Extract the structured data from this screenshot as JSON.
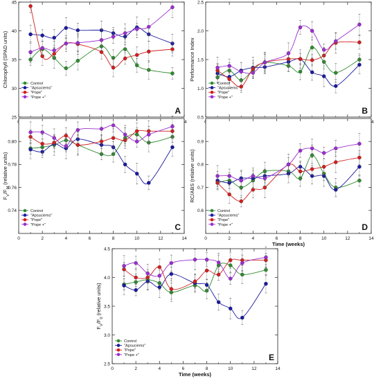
{
  "figure": {
    "series_names": [
      "Control",
      "\"Apsuciems\"",
      "\"Pope\"",
      "\"Pope +\""
    ],
    "series_colors": [
      "#2e8b2e",
      "#1a1aa0",
      "#d21e1e",
      "#9a2fd0"
    ],
    "x_values": [
      1,
      2,
      3,
      4,
      5,
      7,
      8,
      9,
      10,
      11,
      13
    ]
  },
  "chart_data": [
    {
      "type": "line",
      "panel_label": "A",
      "xlabel": "",
      "ylabel": "Chlorophyll (SPAD units)",
      "xlim": [
        0,
        14
      ],
      "ylim": [
        25,
        45
      ],
      "xticks": [
        0,
        2,
        4,
        6,
        8,
        10,
        12,
        14
      ],
      "yticks": [
        25,
        30,
        35,
        40,
        45
      ],
      "x": [
        1,
        2,
        3,
        4,
        5,
        7,
        8,
        9,
        10,
        11,
        13
      ],
      "series": [
        {
          "name": "Control",
          "values": [
            35.0,
            36.8,
            35.3,
            33.5,
            34.8,
            37.3,
            35.3,
            36.8,
            34.0,
            33.2,
            32.6
          ]
        },
        {
          "name": "\"Apsuciems\"",
          "values": [
            39.4,
            39.2,
            38.8,
            40.5,
            40.1,
            40.1,
            39.6,
            39.0,
            40.6,
            39.4,
            37.8
          ]
        },
        {
          "name": "\"Pope\"",
          "values": [
            44.3,
            35.6,
            36.0,
            37.8,
            37.7,
            36.3,
            33.6,
            35.2,
            35.8,
            36.4,
            36.8
          ]
        },
        {
          "name": "\"Pope +\"",
          "values": [
            36.3,
            37.0,
            36.6,
            37.8,
            37.9,
            38.4,
            39.0,
            39.6,
            40.3,
            40.7,
            44.1
          ]
        }
      ]
    },
    {
      "type": "line",
      "panel_label": "B",
      "xlabel": "",
      "ylabel": "Performance Index",
      "xlim": [
        0,
        14
      ],
      "ylim": [
        0.5,
        2.5
      ],
      "xticks": [
        0,
        2,
        4,
        6,
        8,
        10,
        12,
        14
      ],
      "yticks": [
        0.5,
        1.0,
        1.5,
        2.0,
        2.5
      ],
      "x": [
        1,
        2,
        3,
        4,
        5,
        7,
        8,
        9,
        10,
        11,
        13
      ],
      "series": [
        {
          "name": "Control",
          "values": [
            1.19,
            1.31,
            1.14,
            1.32,
            1.45,
            1.39,
            1.29,
            1.71,
            1.46,
            1.27,
            1.5
          ]
        },
        {
          "name": "\"Apsuciems\"",
          "values": [
            1.26,
            1.2,
            1.31,
            1.36,
            1.37,
            1.46,
            1.51,
            1.28,
            1.21,
            1.04,
            1.41
          ]
        },
        {
          "name": "\"Pope\"",
          "values": [
            1.31,
            1.16,
            1.03,
            1.34,
            1.45,
            1.51,
            1.51,
            1.49,
            1.57,
            1.79,
            1.8
          ]
        },
        {
          "name": "\"Pope +\"",
          "values": [
            1.36,
            1.39,
            1.29,
            1.27,
            1.45,
            1.61,
            2.06,
            2.0,
            1.67,
            1.82,
            2.11
          ]
        }
      ]
    },
    {
      "type": "line",
      "panel_label": "C",
      "xlabel": "",
      "ylabel": "F_V/F_M (relative units)",
      "xlim": [
        0,
        14
      ],
      "ylim": [
        0.72,
        0.82
      ],
      "xticks": [
        0,
        2,
        4,
        6,
        8,
        10,
        12,
        14
      ],
      "yticks": [
        0.74,
        0.76,
        0.78,
        0.8
      ],
      "x": [
        1,
        2,
        3,
        4,
        5,
        7,
        8,
        9,
        10,
        11,
        13
      ],
      "series": [
        {
          "name": "Control",
          "values": [
            0.794,
            0.795,
            0.797,
            0.801,
            0.797,
            0.789,
            0.789,
            0.803,
            0.806,
            0.799,
            0.804
          ]
        },
        {
          "name": "\"Apsuciems\"",
          "values": [
            0.793,
            0.791,
            0.798,
            0.794,
            0.802,
            0.797,
            0.795,
            0.78,
            0.772,
            0.764,
            0.795
          ]
        },
        {
          "name": "\"Pope\"",
          "values": [
            0.804,
            0.798,
            0.799,
            0.805,
            0.797,
            0.8,
            0.803,
            0.801,
            0.809,
            0.809,
            0.809
          ]
        },
        {
          "name": "\"Pope +\"",
          "values": [
            0.808,
            0.808,
            0.803,
            0.796,
            0.81,
            0.811,
            0.814,
            0.806,
            0.8,
            0.806,
            0.813
          ]
        }
      ]
    },
    {
      "type": "line",
      "panel_label": "D",
      "xlabel": "Time (weeks)",
      "ylabel": "RC/ABS (relative units)",
      "xlim": [
        0,
        14
      ],
      "ylim": [
        0.5,
        1.0
      ],
      "xticks": [
        0,
        2,
        4,
        6,
        8,
        10,
        12,
        14
      ],
      "yticks": [
        0.6,
        0.7,
        0.8,
        0.9
      ],
      "x": [
        1,
        2,
        3,
        4,
        5,
        7,
        8,
        9,
        10,
        11,
        13
      ],
      "series": [
        {
          "name": "Control",
          "values": [
            0.72,
            0.73,
            0.7,
            0.73,
            0.77,
            0.77,
            0.74,
            0.84,
            0.76,
            0.7,
            0.73
          ]
        },
        {
          "name": "\"Apsuciems\"",
          "values": [
            0.73,
            0.72,
            0.74,
            0.74,
            0.75,
            0.76,
            0.79,
            0.75,
            0.75,
            0.69,
            0.79
          ]
        },
        {
          "name": "\"Pope\"",
          "values": [
            0.72,
            0.67,
            0.64,
            0.69,
            0.7,
            0.8,
            0.77,
            0.78,
            0.79,
            0.81,
            0.83
          ]
        },
        {
          "name": "\"Pope +\"",
          "values": [
            0.75,
            0.75,
            0.73,
            0.75,
            0.74,
            0.8,
            0.86,
            0.87,
            0.85,
            0.87,
            0.89
          ]
        }
      ]
    },
    {
      "type": "line",
      "panel_label": "E",
      "xlabel": "Time (weeks)",
      "ylabel": "F_V/F_0 (relative units)",
      "xlim": [
        0,
        14
      ],
      "ylim": [
        2.5,
        4.5
      ],
      "xticks": [
        0,
        2,
        4,
        6,
        8,
        10,
        12,
        14
      ],
      "yticks": [
        2.5,
        3.0,
        3.5,
        4.0,
        4.5
      ],
      "x": [
        1,
        2,
        3,
        4,
        5,
        7,
        8,
        9,
        10,
        11,
        13
      ],
      "series": [
        {
          "name": "Control",
          "values": [
            3.88,
            3.92,
            3.96,
            3.9,
            3.74,
            3.86,
            3.77,
            4.21,
            4.21,
            4.05,
            4.13
          ]
        },
        {
          "name": "\"Apsuciems\"",
          "values": [
            3.86,
            3.78,
            3.93,
            3.83,
            4.06,
            3.9,
            3.87,
            3.57,
            3.46,
            3.3,
            3.89
          ]
        },
        {
          "name": "\"Pope\"",
          "values": [
            4.14,
            4.0,
            4.0,
            4.18,
            3.8,
            3.93,
            4.12,
            4.05,
            4.3,
            4.3,
            4.3
          ]
        },
        {
          "name": "\"Pope +\"",
          "values": [
            4.2,
            4.25,
            4.07,
            4.03,
            4.25,
            4.31,
            4.31,
            4.26,
            3.98,
            4.25,
            4.35
          ]
        }
      ]
    }
  ]
}
